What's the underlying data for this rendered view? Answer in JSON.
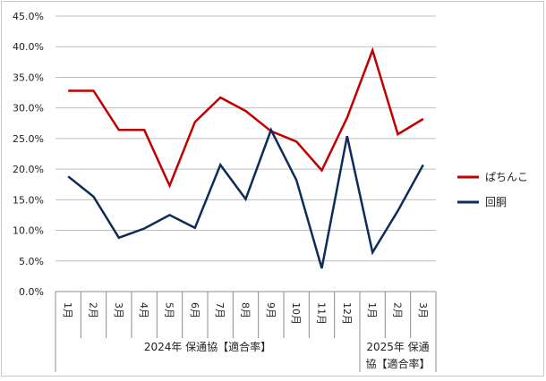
{
  "chart_data": {
    "type": "line",
    "ylim": [
      0,
      45
    ],
    "ytick_labels": [
      "0.0%",
      "5.0%",
      "10.0%",
      "15.0%",
      "20.0%",
      "25.0%",
      "30.0%",
      "35.0%",
      "40.0%",
      "45.0%"
    ],
    "months": [
      "1月",
      "2月",
      "3月",
      "4月",
      "5月",
      "6月",
      "7月",
      "8月",
      "9月",
      "10月",
      "11月",
      "12月",
      "1月",
      "2月",
      "3月"
    ],
    "groups": [
      {
        "label": "2024年 保通協【適合率】",
        "lines": [
          "2024年 保通協【適合率】"
        ],
        "span": 12
      },
      {
        "label": "2025年 保通協【適合率】",
        "lines": [
          "2025年 保通",
          "協【適合率】"
        ],
        "span": 3
      }
    ],
    "grid": true,
    "legend_position": "right",
    "series": [
      {
        "name": "ぱちんこ",
        "color": "#C00000",
        "values": [
          32.8,
          32.8,
          26.4,
          26.4,
          17.3,
          27.7,
          31.7,
          29.5,
          26.2,
          24.5,
          19.8,
          28.4,
          39.4,
          25.7,
          28.2
        ]
      },
      {
        "name": "回胴",
        "color": "#0E2C5A",
        "values": [
          18.8,
          15.5,
          8.8,
          10.3,
          12.5,
          10.4,
          20.7,
          15.1,
          26.4,
          18.2,
          3.8,
          25.4,
          6.4,
          13.2,
          20.7
        ]
      }
    ]
  }
}
